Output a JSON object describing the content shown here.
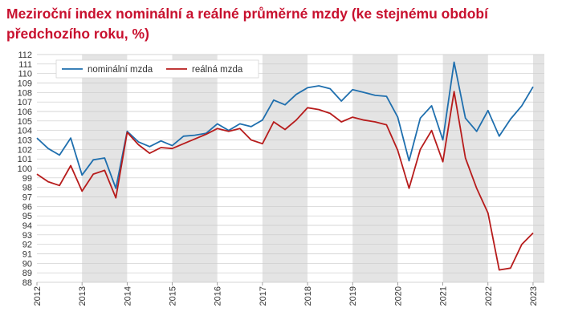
{
  "chart_data": {
    "type": "line",
    "title": "Meziroční index nominální a reálné průměrné mzdy (ke stejnému období předchozího roku, %)",
    "xlabel": "",
    "ylabel": "",
    "xlim": [
      2012.0,
      2023.25
    ],
    "ylim": [
      88,
      112
    ],
    "y_ticks": [
      88,
      89,
      90,
      91,
      92,
      93,
      94,
      95,
      96,
      97,
      98,
      99,
      100,
      101,
      102,
      103,
      104,
      105,
      106,
      107,
      108,
      109,
      110,
      111,
      112
    ],
    "year_labels": [
      "2012",
      "2013",
      "2014",
      "2015",
      "2016",
      "2017",
      "2018",
      "2019",
      "2020",
      "2021",
      "2022",
      "2023"
    ],
    "shaded_years": [
      2013,
      2015,
      2017,
      2019,
      2021,
      2023
    ],
    "grid": true,
    "legend_position": "top-left",
    "series": [
      {
        "name": "nominální mzda",
        "color": "#1f6fae",
        "x": [
          2012.0,
          2012.25,
          2012.5,
          2012.75,
          2013.0,
          2013.25,
          2013.5,
          2013.75,
          2014.0,
          2014.25,
          2014.5,
          2014.75,
          2015.0,
          2015.25,
          2015.5,
          2015.75,
          2016.0,
          2016.25,
          2016.5,
          2016.75,
          2017.0,
          2017.25,
          2017.5,
          2017.75,
          2018.0,
          2018.25,
          2018.5,
          2018.75,
          2019.0,
          2019.25,
          2019.5,
          2019.75,
          2020.0,
          2020.25,
          2020.5,
          2020.75,
          2021.0,
          2021.25,
          2021.5,
          2021.75,
          2022.0,
          2022.25,
          2022.5,
          2022.75,
          2023.0,
          2023.25
        ],
        "values": [
          103.2,
          102.1,
          101.4,
          103.2,
          99.3,
          100.9,
          101.1,
          97.9,
          103.9,
          102.8,
          102.3,
          102.9,
          102.4,
          103.4,
          103.5,
          103.7,
          104.7,
          104.0,
          104.7,
          104.4,
          105.1,
          107.2,
          106.7,
          107.8,
          108.5,
          108.7,
          108.4,
          107.1,
          108.3,
          108.0,
          107.7,
          107.6,
          105.4,
          100.8,
          105.3,
          106.6,
          103.0,
          111.2,
          105.3,
          103.9,
          106.1,
          103.4,
          105.2,
          106.6,
          108.6,
          null
        ]
      },
      {
        "name": "reálná mzda",
        "color": "#b71c1c",
        "x": [
          2012.0,
          2012.25,
          2012.5,
          2012.75,
          2013.0,
          2013.25,
          2013.5,
          2013.75,
          2014.0,
          2014.25,
          2014.5,
          2014.75,
          2015.0,
          2015.25,
          2015.5,
          2015.75,
          2016.0,
          2016.25,
          2016.5,
          2016.75,
          2017.0,
          2017.25,
          2017.5,
          2017.75,
          2018.0,
          2018.25,
          2018.5,
          2018.75,
          2019.0,
          2019.25,
          2019.5,
          2019.75,
          2020.0,
          2020.25,
          2020.5,
          2020.75,
          2021.0,
          2021.25,
          2021.5,
          2021.75,
          2022.0,
          2022.25,
          2022.5,
          2022.75,
          2023.0,
          2023.25
        ],
        "values": [
          99.4,
          98.6,
          98.2,
          100.3,
          97.6,
          99.4,
          99.8,
          96.9,
          103.8,
          102.5,
          101.6,
          102.2,
          102.1,
          102.6,
          103.1,
          103.6,
          104.2,
          103.9,
          104.2,
          103.0,
          102.6,
          104.9,
          104.1,
          105.1,
          106.4,
          106.2,
          105.8,
          104.9,
          105.4,
          105.1,
          104.9,
          104.6,
          101.9,
          97.9,
          102.0,
          104.0,
          100.7,
          108.1,
          101.1,
          97.9,
          95.3,
          89.3,
          89.5,
          92.0,
          93.2,
          null
        ]
      }
    ]
  }
}
